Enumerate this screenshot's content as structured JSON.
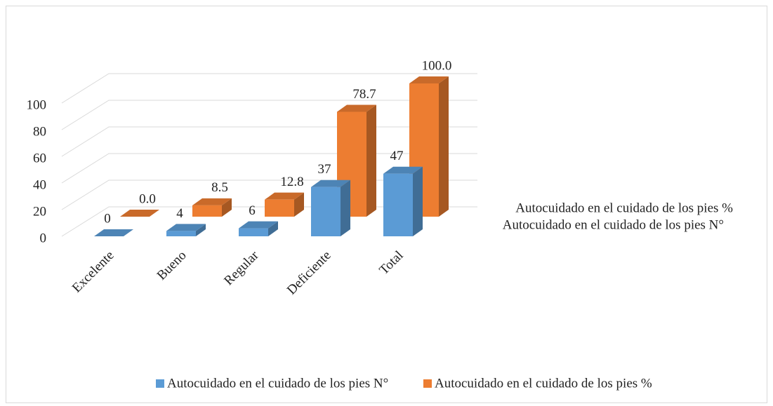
{
  "chart_data": {
    "type": "bar",
    "categories": [
      "Excelente",
      "Bueno",
      "Regular",
      "Deficiente",
      "Total"
    ],
    "series": [
      {
        "name": "Autocuidado en el cuidado de los pies N°",
        "color": "#5b9bd5",
        "values": [
          0,
          4,
          6,
          37,
          47
        ]
      },
      {
        "name": "Autocuidado en el cuidado de los pies %",
        "color": "#ed7d31",
        "values": [
          0,
          8.5,
          12.8,
          78.7,
          100
        ],
        "value_labels": [
          "0.0",
          "8.5",
          "12.8",
          "78.7",
          "100.0"
        ]
      }
    ],
    "ylim": [
      0,
      100
    ],
    "yticks": [
      0,
      20,
      40,
      60,
      80,
      100
    ],
    "grid": true,
    "legend": "bottom"
  }
}
